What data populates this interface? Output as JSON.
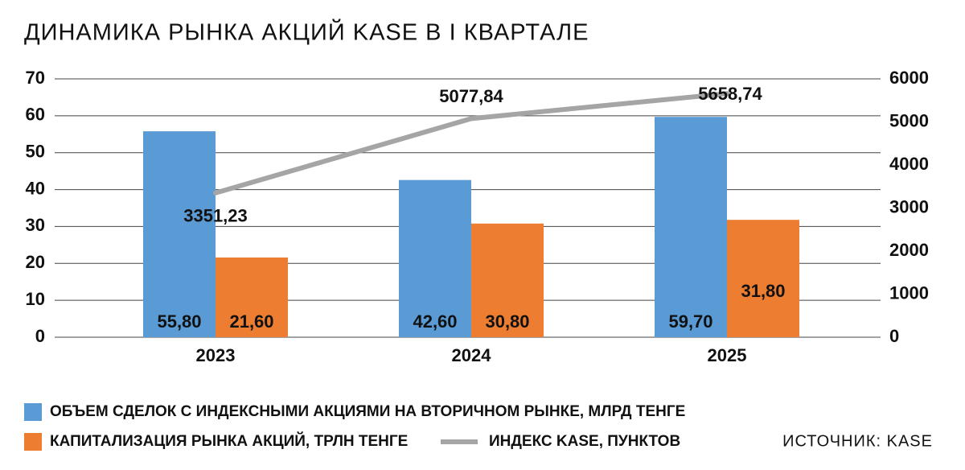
{
  "chart_data": {
    "type": "bar",
    "title": "ДИНАМИКА РЫНКА АКЦИЙ KASE В I КВАРТАЛЕ",
    "source": "ИСТОЧНИК: KASE",
    "categories": [
      "2023",
      "2024",
      "2025"
    ],
    "series": [
      {
        "name": "ОБЪЕМ СДЕЛОК С ИНДЕКСНЫМИ АКЦИЯМИ НА ВТОРИЧНОМ РЫНКЕ, МЛРД ТЕНГЕ",
        "color": "#5b9bd5",
        "values": [
          55.8,
          42.6,
          59.7
        ],
        "value_labels": [
          "55,80",
          "42,60",
          "59,70"
        ]
      },
      {
        "name": "КАПИТАЛИЗАЦИЯ РЫНКА АКЦИЙ, ТРЛН ТЕНГЕ",
        "color": "#ed7d31",
        "values": [
          21.6,
          30.8,
          31.8
        ],
        "value_labels": [
          "21,60",
          "30,80",
          "31,80"
        ]
      },
      {
        "name": "ИНДЕКС KASE, ПУНКТОВ",
        "color": "#a5a5a5",
        "type": "line",
        "axis": "y2",
        "values": [
          3351.23,
          5077.84,
          5658.74
        ],
        "value_labels": [
          "3351,23",
          "5077,84",
          "5658,74"
        ]
      }
    ],
    "ylim": [
      0,
      70
    ],
    "yticks": [
      0,
      10,
      20,
      30,
      40,
      50,
      60,
      70
    ],
    "y2lim": [
      0,
      6000
    ],
    "y2ticks": [
      0,
      1000,
      2000,
      3000,
      4000,
      5000,
      6000
    ],
    "grid": true
  }
}
